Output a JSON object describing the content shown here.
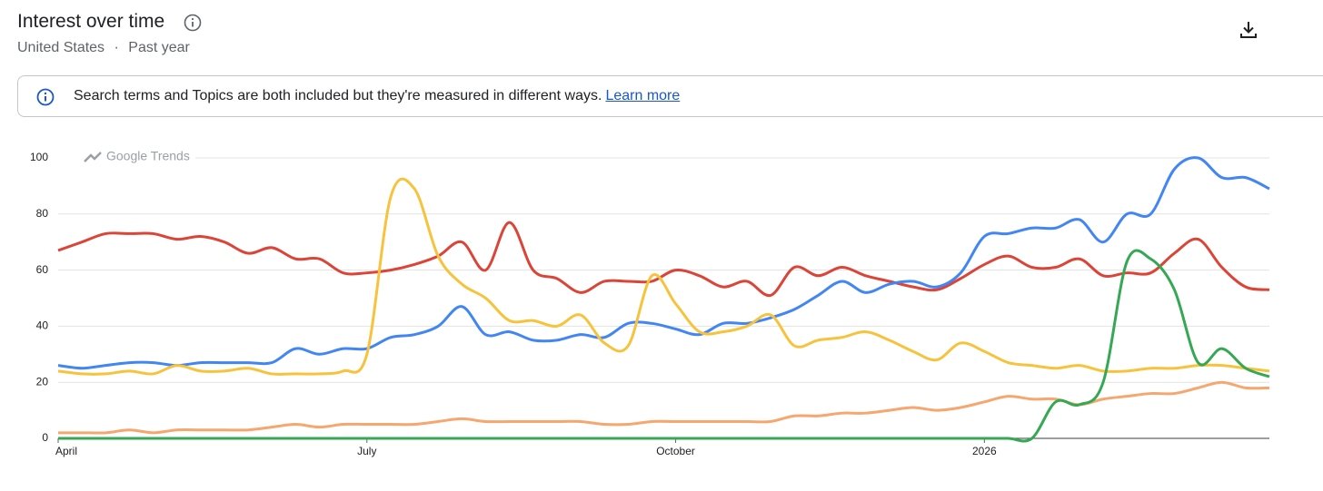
{
  "header": {
    "title": "Interest over time",
    "region": "United States",
    "separator": "·",
    "period": "Past year"
  },
  "notice": {
    "text": "Search terms and Topics are both included but they're measured in different ways.",
    "link": "Learn more"
  },
  "chart_data": {
    "type": "line",
    "watermark": "Google Trends",
    "categories": [
      "April",
      null,
      null,
      null,
      null,
      null,
      null,
      null,
      null,
      null,
      null,
      null,
      null,
      "July",
      null,
      null,
      null,
      null,
      null,
      null,
      null,
      null,
      null,
      null,
      null,
      null,
      "October",
      null,
      null,
      null,
      null,
      null,
      null,
      null,
      null,
      null,
      null,
      null,
      null,
      "2026",
      null,
      null,
      null,
      null,
      null,
      null,
      null,
      null,
      null,
      null,
      null,
      null
    ],
    "ylim": [
      0,
      100
    ],
    "yticks": [
      0,
      20,
      40,
      60,
      80,
      100
    ],
    "grid": true,
    "series": [
      {
        "color": "#db4437",
        "values": [
          67,
          70,
          73,
          73,
          73,
          71,
          72,
          70,
          66,
          68,
          64,
          64,
          59,
          59,
          60,
          62,
          65,
          70,
          60,
          77,
          60,
          57,
          52,
          56,
          56,
          56,
          60,
          58,
          54,
          56,
          51,
          61,
          58,
          61,
          58,
          56,
          54,
          53,
          57,
          62,
          65,
          61,
          61,
          64,
          58,
          59,
          59,
          66,
          71,
          61,
          54,
          53
        ]
      },
      {
        "color": "#4285f4",
        "values": [
          26,
          25,
          26,
          27,
          27,
          26,
          27,
          27,
          27,
          27,
          32,
          30,
          32,
          32,
          36,
          37,
          40,
          47,
          37,
          38,
          35,
          35,
          37,
          36,
          41,
          41,
          39,
          37,
          41,
          41,
          43,
          46,
          51,
          56,
          52,
          55,
          56,
          54,
          59,
          72,
          73,
          75,
          75,
          78,
          70,
          80,
          80,
          96,
          100,
          93,
          93,
          89
        ]
      },
      {
        "color": "#f6a66f",
        "values": [
          2,
          2,
          2,
          3,
          2,
          3,
          3,
          3,
          3,
          4,
          5,
          4,
          5,
          5,
          5,
          5,
          6,
          7,
          6,
          6,
          6,
          6,
          6,
          5,
          5,
          6,
          6,
          6,
          6,
          6,
          6,
          8,
          8,
          9,
          9,
          10,
          11,
          10,
          11,
          13,
          15,
          14,
          14,
          12,
          14,
          15,
          16,
          16,
          18,
          20,
          18,
          18
        ]
      },
      {
        "color": "#f7c33c",
        "values": [
          24,
          23,
          23,
          24,
          23,
          26,
          24,
          24,
          25,
          23,
          23,
          23,
          24,
          30,
          86,
          89,
          65,
          55,
          50,
          42,
          42,
          40,
          44,
          34,
          33,
          58,
          48,
          38,
          38,
          40,
          44,
          33,
          35,
          36,
          38,
          35,
          31,
          28,
          34,
          31,
          27,
          26,
          25,
          26,
          24,
          24,
          25,
          25,
          26,
          26,
          25,
          24
        ]
      },
      {
        "color": "#34a853",
        "values": [
          0,
          0,
          0,
          0,
          0,
          0,
          0,
          0,
          0,
          0,
          0,
          0,
          0,
          0,
          0,
          0,
          0,
          0,
          0,
          0,
          0,
          0,
          0,
          0,
          0,
          0,
          0,
          0,
          0,
          0,
          0,
          0,
          0,
          0,
          0,
          0,
          0,
          0,
          0,
          0,
          0,
          0,
          13,
          12,
          20,
          63,
          64,
          53,
          27,
          32,
          25,
          22
        ]
      }
    ]
  }
}
